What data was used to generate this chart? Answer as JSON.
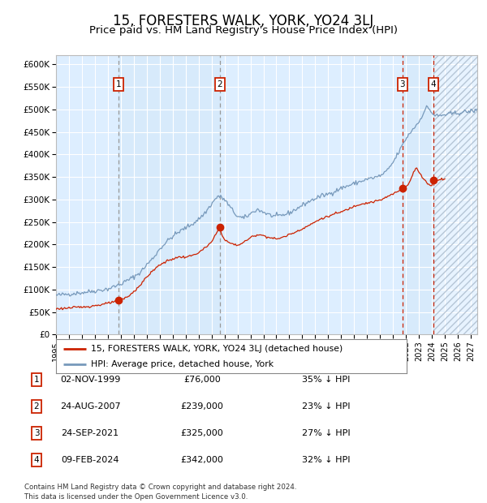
{
  "title": "15, FORESTERS WALK, YORK, YO24 3LJ",
  "subtitle": "Price paid vs. HM Land Registry's House Price Index (HPI)",
  "title_fontsize": 12,
  "subtitle_fontsize": 9.5,
  "ylim": [
    0,
    620000
  ],
  "xlim_start": 1995.0,
  "xlim_end": 2027.5,
  "yticks": [
    0,
    50000,
    100000,
    150000,
    200000,
    250000,
    300000,
    350000,
    400000,
    450000,
    500000,
    550000,
    600000
  ],
  "ytick_labels": [
    "£0",
    "£50K",
    "£100K",
    "£150K",
    "£200K",
    "£250K",
    "£300K",
    "£350K",
    "£400K",
    "£450K",
    "£500K",
    "£550K",
    "£600K"
  ],
  "xticks": [
    1995,
    1996,
    1997,
    1998,
    1999,
    2000,
    2001,
    2002,
    2003,
    2004,
    2005,
    2006,
    2007,
    2008,
    2009,
    2010,
    2011,
    2012,
    2013,
    2014,
    2015,
    2016,
    2017,
    2018,
    2019,
    2020,
    2021,
    2022,
    2023,
    2024,
    2025,
    2026,
    2027
  ],
  "bg_color": "#ddeeff",
  "grid_color": "#ffffff",
  "hpi_line_color": "#7799bb",
  "price_line_color": "#cc2200",
  "marker_color": "#cc2200",
  "sale_dates": [
    1999.836,
    2007.644,
    2021.729,
    2024.11
  ],
  "sale_prices": [
    76000,
    239000,
    325000,
    342000
  ],
  "sale_labels": [
    "1",
    "2",
    "3",
    "4"
  ],
  "vline_colors_12": "#999999",
  "vline_colors_34": "#cc2200",
  "legend_label_red": "15, FORESTERS WALK, YORK, YO24 3LJ (detached house)",
  "legend_label_blue": "HPI: Average price, detached house, York",
  "table_rows": [
    [
      "1",
      "02-NOV-1999",
      "£76,000",
      "35% ↓ HPI"
    ],
    [
      "2",
      "24-AUG-2007",
      "£239,000",
      "23% ↓ HPI"
    ],
    [
      "3",
      "24-SEP-2021",
      "£325,000",
      "27% ↓ HPI"
    ],
    [
      "4",
      "09-FEB-2024",
      "£342,000",
      "32% ↓ HPI"
    ]
  ],
  "footnote": "Contains HM Land Registry data © Crown copyright and database right 2024.\nThis data is licensed under the Open Government Licence v3.0.",
  "future_start": 2024.11
}
